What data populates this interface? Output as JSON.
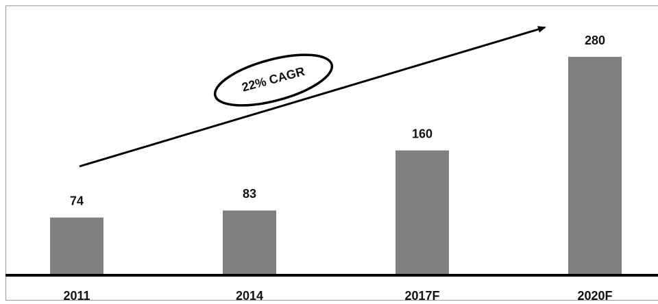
{
  "chart_data": {
    "type": "bar",
    "categories": [
      "2011",
      "2014",
      "2017F",
      "2020F"
    ],
    "values": [
      74,
      83,
      160,
      280
    ],
    "color": "#808080",
    "annotation": "22% CAGR"
  }
}
